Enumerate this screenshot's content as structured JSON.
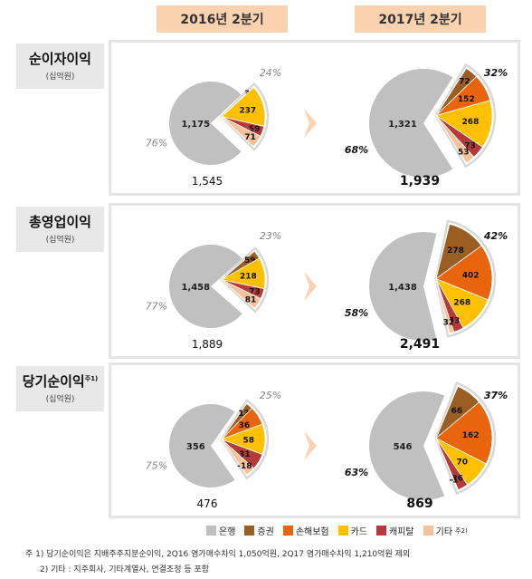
{
  "periods": [
    "2016년 2분기",
    "2017년 2분기"
  ],
  "rows": [
    {
      "title": "순이자이익",
      "title_sup": "",
      "unit": "(십억원)"
    },
    {
      "title": "총영업이익",
      "title_sup": "",
      "unit": "(십억원)"
    },
    {
      "title": "당기순이익",
      "title_sup": "주1)",
      "unit": "(십억원)"
    }
  ],
  "legend": [
    {
      "name": "은행",
      "color": "#c0c0c0",
      "sup": ""
    },
    {
      "name": "증권",
      "color": "#9a5d22",
      "sup": ""
    },
    {
      "name": "손해보험",
      "color": "#e8650e",
      "sup": ""
    },
    {
      "name": "카드",
      "color": "#ffc000",
      "sup": ""
    },
    {
      "name": "캐피탈",
      "color": "#b73a3a",
      "sup": ""
    },
    {
      "name": "기타",
      "color": "#f7c29a",
      "sup": "주2)"
    }
  ],
  "notes": {
    "n1": "주 1) 당기순이익은 지배주주지분순이익, 2Q16 염가매수차익 1,050억원, 2Q17 염가매수차익 1,210억원 제외",
    "n2": "2) 기타 : 지주회사, 기타계열사, 연결조정 등 포함"
  },
  "chart_data": [
    {
      "type": "pie",
      "title": "순이자이익",
      "period": "2016년 2분기",
      "total": "1,545",
      "categories": [
        "은행",
        "증권",
        "손해보험",
        "카드",
        "캐피탈",
        "기타"
      ],
      "values": [
        1175,
        3,
        0,
        237,
        59,
        71
      ],
      "labels": [
        "1,175",
        "3",
        "",
        "237",
        "59",
        "71"
      ],
      "bank_pct": "76%",
      "others_pct": "24%"
    },
    {
      "type": "pie",
      "title": "순이자이익",
      "period": "2017년 2분기",
      "total": "1,939",
      "categories": [
        "은행",
        "증권",
        "손해보험",
        "카드",
        "캐피탈",
        "기타"
      ],
      "values": [
        1321,
        72,
        152,
        268,
        73,
        53
      ],
      "labels": [
        "1,321",
        "72",
        "152",
        "268",
        "73",
        "53"
      ],
      "bank_pct": "68%",
      "others_pct": "32%"
    },
    {
      "type": "pie",
      "title": "총영업이익",
      "period": "2016년 2분기",
      "total": "1,889",
      "categories": [
        "은행",
        "증권",
        "손해보험",
        "카드",
        "캐피탈",
        "기타"
      ],
      "values": [
        1458,
        59,
        0,
        218,
        73,
        81
      ],
      "labels": [
        "1,458",
        "59",
        "",
        "218",
        "73",
        "81"
      ],
      "bank_pct": "77%",
      "others_pct": "23%"
    },
    {
      "type": "pie",
      "title": "총영업이익",
      "period": "2017년 2분기",
      "total": "2,491",
      "categories": [
        "은행",
        "증권",
        "손해보험",
        "카드",
        "캐피탈",
        "기타"
      ],
      "values": [
        1438,
        278,
        402,
        268,
        73,
        32
      ],
      "labels": [
        "1,438",
        "278",
        "402",
        "268",
        "73",
        "32"
      ],
      "bank_pct": "58%",
      "others_pct": "42%"
    },
    {
      "type": "pie",
      "title": "당기순이익",
      "period": "2016년 2분기",
      "total": "476",
      "categories": [
        "은행",
        "증권",
        "손해보험",
        "카드",
        "캐피탈",
        "기타"
      ],
      "values": [
        356,
        13,
        36,
        58,
        31,
        -18
      ],
      "labels": [
        "356",
        "13",
        "36",
        "58",
        "31",
        "-18"
      ],
      "bank_pct": "75%",
      "others_pct": "25%"
    },
    {
      "type": "pie",
      "title": "당기순이익",
      "period": "2017년 2분기",
      "total": "869",
      "categories": [
        "은행",
        "증권",
        "손해보험",
        "카드",
        "캐피탈",
        "기타"
      ],
      "values": [
        546,
        66,
        162,
        70,
        26,
        -1
      ],
      "labels": [
        "546",
        "66",
        "162",
        "70",
        "26",
        "-1"
      ],
      "bank_pct": "63%",
      "others_pct": "37%"
    }
  ]
}
